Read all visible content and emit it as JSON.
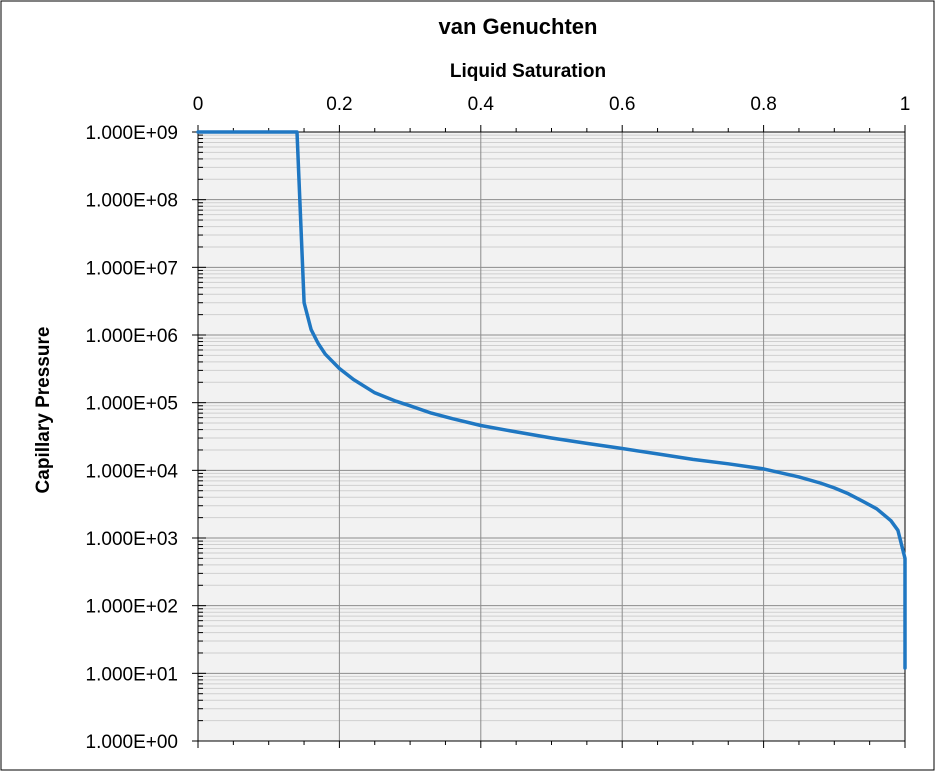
{
  "chart_data": {
    "type": "line",
    "title": "van Genuchten",
    "xlabel": "Liquid  Saturation",
    "ylabel": "Capillary  Pressure",
    "x_axis_position": "top",
    "y_scale": "log",
    "xlim": [
      0,
      1
    ],
    "ylim": [
      1,
      1000000000
    ],
    "x_ticks": [
      0,
      0.2,
      0.4,
      0.6,
      0.8,
      1
    ],
    "x_tick_labels": [
      "0",
      "0.2",
      "0.4",
      "0.6",
      "0.8",
      "1"
    ],
    "y_ticks": [
      1,
      10,
      100,
      1000,
      10000,
      100000,
      1000000,
      10000000,
      100000000,
      1000000000
    ],
    "y_tick_labels": [
      "1.000E+00",
      "1.000E+01",
      "1.000E+02",
      "1.000E+03",
      "1.000E+04",
      "1.000E+05",
      "1.000E+06",
      "1.000E+07",
      "1.000E+08",
      "1.000E+09"
    ],
    "grid": true,
    "legend": "none",
    "colors": {
      "line": "#1f77c2",
      "plot_background": "#f2f2f2",
      "major_grid": "#8c8c8c",
      "minor_grid": "#cfcfcf"
    },
    "series": [
      {
        "x": [
          0,
          0.14,
          0.15,
          0.16,
          0.17,
          0.18,
          0.2,
          0.22,
          0.25,
          0.28,
          0.3,
          0.33,
          0.36,
          0.4,
          0.45,
          0.5,
          0.55,
          0.6,
          0.65,
          0.7,
          0.75,
          0.8,
          0.85,
          0.88,
          0.9,
          0.92,
          0.94,
          0.96,
          0.98,
          0.99,
          0.995,
          1.0,
          1.0
        ],
        "y": [
          1000000000,
          1000000000,
          3000000,
          1200000,
          750000,
          520000,
          320000,
          220000,
          140000,
          105000,
          90000,
          70000,
          58000,
          46000,
          37000,
          30000,
          25000,
          21000,
          17500,
          14500,
          12500,
          10500,
          8000,
          6500,
          5500,
          4500,
          3500,
          2700,
          1800,
          1300,
          800,
          500,
          12
        ]
      }
    ]
  }
}
